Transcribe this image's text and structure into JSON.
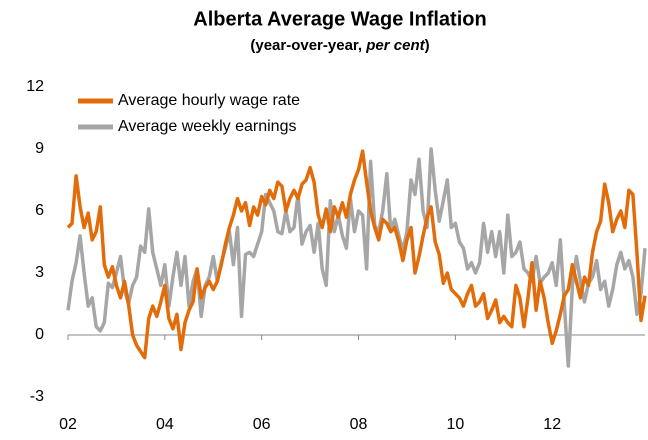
{
  "chart_data": {
    "type": "line",
    "title": "Alberta Average Wage Inflation",
    "subtitle": [
      "(year-over-year, ",
      "per cent",
      ")"
    ],
    "categories": [
      "02",
      null,
      null,
      null,
      null,
      null,
      null,
      null,
      null,
      null,
      null,
      null,
      null,
      null,
      null,
      null,
      null,
      null,
      null,
      null,
      null,
      null,
      null,
      null,
      "04",
      null,
      null,
      null,
      null,
      null,
      null,
      null,
      null,
      null,
      null,
      null,
      null,
      null,
      null,
      null,
      null,
      null,
      null,
      null,
      null,
      null,
      null,
      null,
      "06",
      null,
      null,
      null,
      null,
      null,
      null,
      null,
      null,
      null,
      null,
      null,
      null,
      null,
      null,
      null,
      null,
      null,
      null,
      null,
      null,
      null,
      null,
      null,
      "08",
      null,
      null,
      null,
      null,
      null,
      null,
      null,
      null,
      null,
      null,
      null,
      null,
      null,
      null,
      null,
      null,
      null,
      null,
      null,
      null,
      null,
      null,
      null,
      "10",
      null,
      null,
      null,
      null,
      null,
      null,
      null,
      null,
      null,
      null,
      null,
      null,
      null,
      null,
      null,
      null,
      null,
      null,
      null,
      null,
      null,
      null,
      null,
      "12",
      null,
      null,
      null,
      null,
      null,
      null,
      null,
      null,
      null,
      null,
      null,
      null,
      null,
      null,
      null,
      null,
      null,
      null,
      null,
      null,
      null,
      null,
      null
    ],
    "series": [
      {
        "name": "Average hourly wage rate",
        "color": "#e36c0a",
        "values": [
          5.2,
          5.4,
          7.7,
          6.2,
          5.2,
          5.9,
          4.6,
          5.0,
          6.2,
          3.4,
          2.8,
          3.3,
          2.4,
          1.8,
          2.6,
          1.5,
          0.0,
          -0.5,
          -0.8,
          -1.1,
          0.8,
          1.4,
          0.9,
          1.6,
          2.4,
          0.8,
          0.3,
          1.0,
          -0.7,
          0.6,
          1.2,
          1.6,
          3.2,
          1.8,
          2.3,
          2.6,
          2.2,
          2.6,
          3.4,
          4.4,
          5.2,
          5.8,
          6.6,
          6.0,
          6.4,
          5.3,
          6.2,
          5.8,
          6.7,
          6.3,
          7.0,
          6.6,
          7.4,
          7.2,
          6.0,
          6.6,
          7.0,
          6.6,
          7.3,
          7.5,
          8.1,
          7.4,
          5.8,
          5.2,
          6.1,
          5.0,
          6.2,
          5.7,
          6.4,
          5.7,
          6.8,
          7.5,
          8.0,
          8.9,
          7.4,
          6.0,
          5.2,
          4.6,
          5.6,
          5.4,
          5.0,
          5.2,
          4.5,
          3.6,
          4.6,
          5.2,
          3.0,
          3.8,
          4.8,
          5.7,
          6.2,
          4.5,
          3.9,
          2.5,
          3.0,
          2.2,
          2.0,
          1.8,
          1.4,
          2.0,
          2.4,
          1.4,
          1.6,
          2.0,
          0.8,
          1.2,
          1.7,
          0.6,
          0.9,
          0.6,
          0.4,
          2.4,
          1.8,
          0.4,
          1.8,
          3.5,
          1.2,
          2.6,
          1.8,
          0.6,
          -0.4,
          0.2,
          1.0,
          1.9,
          2.2,
          3.4,
          2.6,
          1.8,
          2.8,
          2.4,
          4.0,
          5.0,
          5.5,
          7.3,
          6.4,
          5.0,
          5.6,
          6.0,
          5.2,
          7.0,
          6.8,
          4.0,
          0.7,
          1.9
        ]
      },
      {
        "name": "Average weekly earnings",
        "color": "#a6a6a6",
        "values": [
          1.2,
          2.6,
          3.5,
          4.8,
          3.0,
          1.4,
          1.8,
          0.4,
          0.2,
          0.6,
          2.5,
          2.3,
          3.0,
          3.8,
          2.2,
          1.5,
          2.4,
          2.8,
          4.3,
          4.0,
          6.1,
          4.0,
          3.2,
          2.4,
          3.4,
          1.4,
          2.8,
          4.0,
          2.4,
          3.8,
          1.4,
          2.6,
          3.2,
          0.9,
          2.4,
          2.8,
          3.8,
          2.6,
          3.5,
          4.2,
          5.0,
          3.4,
          5.2,
          0.9,
          3.9,
          4.0,
          3.8,
          4.4,
          5.0,
          6.8,
          6.4,
          6.0,
          5.0,
          4.9,
          6.0,
          5.0,
          5.2,
          6.8,
          4.4,
          5.0,
          5.3,
          4.0,
          5.4,
          3.2,
          2.4,
          6.5,
          5.0,
          5.8,
          4.8,
          4.2,
          6.6,
          5.0,
          6.0,
          5.8,
          3.2,
          8.4,
          5.3,
          5.0,
          6.0,
          7.8,
          5.0,
          5.6,
          4.8,
          4.1,
          5.0,
          7.5,
          6.8,
          8.5,
          6.0,
          5.2,
          9.0,
          7.0,
          5.5,
          6.5,
          7.5,
          5.2,
          5.4,
          4.5,
          4.2,
          3.2,
          3.5,
          3.0,
          3.5,
          5.4,
          4.0,
          5.0,
          3.8,
          5.0,
          3.0,
          5.8,
          3.8,
          4.0,
          4.5,
          3.2,
          3.0,
          2.6,
          3.8,
          2.5,
          2.8,
          3.0,
          3.5,
          2.4,
          4.6,
          1.5,
          -1.5,
          2.4,
          3.8,
          2.6,
          1.6,
          2.5,
          2.8,
          3.6,
          2.2,
          2.6,
          1.4,
          2.2,
          3.4,
          4.0,
          3.2,
          3.6,
          2.8,
          1.0,
          2.0,
          4.2
        ]
      }
    ],
    "ylim": [
      -3,
      12
    ],
    "yticks": [
      -3,
      0,
      3,
      6,
      9,
      12
    ],
    "legend": "upper left",
    "grid": false
  }
}
